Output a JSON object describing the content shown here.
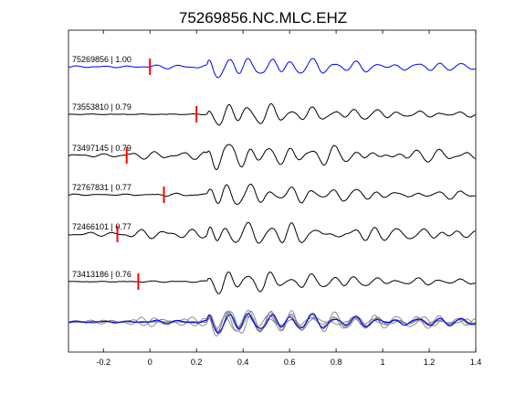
{
  "chart_data": {
    "type": "line",
    "title": "75269856.NC.MLC.EHZ",
    "xlabel": "",
    "ylabel": "",
    "xlim": [
      -0.35,
      1.4
    ],
    "xticks": [
      "-0.2",
      "0",
      "0.2",
      "0.4",
      "0.6",
      "0.8",
      "1",
      "1.2",
      "1.4"
    ],
    "xtick_values": [
      -0.2,
      0,
      0.2,
      0.4,
      0.6,
      0.8,
      1.0,
      1.2,
      1.4
    ],
    "grid": false,
    "colors": {
      "reference": "#0000ff",
      "trace": "#000000",
      "pick": "#ff0000",
      "stack": "#808080"
    },
    "series": [
      {
        "label": "75269856 | 1.00",
        "id": "75269856",
        "cc": 1.0,
        "pick_time": 0.0,
        "seed": 11,
        "main_amp": 1.0,
        "noise_amp": 0.08,
        "reference": true
      },
      {
        "label": "73553810 | 0.79",
        "id": "73553810",
        "cc": 0.79,
        "pick_time": 0.2,
        "seed": 23,
        "main_amp": 1.0,
        "noise_amp": 0.03,
        "reference": false
      },
      {
        "label": "73497145 | 0.79",
        "id": "73497145",
        "cc": 0.79,
        "pick_time": -0.1,
        "seed": 37,
        "main_amp": 1.1,
        "noise_amp": 0.15,
        "reference": false
      },
      {
        "label": "72767831 | 0.77",
        "id": "72767831",
        "cc": 0.77,
        "pick_time": 0.06,
        "seed": 41,
        "main_amp": 1.0,
        "noise_amp": 0.06,
        "reference": false
      },
      {
        "label": "72466101 | 0.77",
        "id": "72466101",
        "cc": 0.77,
        "pick_time": -0.14,
        "seed": 53,
        "main_amp": 1.0,
        "noise_amp": 0.18,
        "reference": false
      },
      {
        "label": "73413186 | 0.76",
        "id": "73413186",
        "cc": 0.76,
        "pick_time": -0.05,
        "seed": 67,
        "main_amp": 1.0,
        "noise_amp": 0.03,
        "reference": false
      }
    ],
    "stack": {
      "shown": true
    }
  }
}
